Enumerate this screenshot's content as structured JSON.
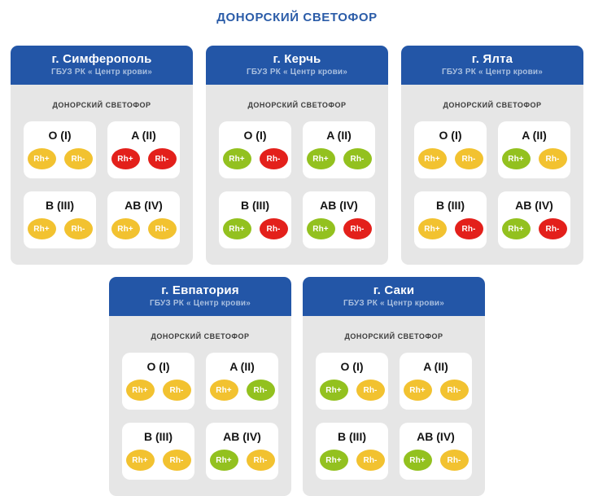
{
  "page": {
    "title": "ДОНОРСКИЙ СВЕТОФОР"
  },
  "labels": {
    "board_label": "ДОНОРСКИЙ СВЕТОФОР",
    "rh_plus": "Rh+",
    "rh_minus": "Rh-"
  },
  "colors": {
    "green": "#93c11f",
    "yellow": "#f2c230",
    "red": "#e3201b",
    "header_blue": "#2356a7",
    "title_blue": "#2b5ca8",
    "body_gray": "#e6e6e6"
  },
  "legend_meaning": {
    "green": "blood needed",
    "yellow": "moderate stock",
    "red": "stock full"
  },
  "centers": [
    {
      "city": "г. Симферополь",
      "subtitle": "ГБУЗ РК « Центр крови»",
      "groups": [
        {
          "type": "O (I)",
          "rh_plus": "yellow",
          "rh_minus": "yellow"
        },
        {
          "type": "A (II)",
          "rh_plus": "red",
          "rh_minus": "red"
        },
        {
          "type": "B (III)",
          "rh_plus": "yellow",
          "rh_minus": "yellow"
        },
        {
          "type": "AB (IV)",
          "rh_plus": "yellow",
          "rh_minus": "yellow"
        }
      ]
    },
    {
      "city": "г. Керчь",
      "subtitle": "ГБУЗ РК « Центр крови»",
      "groups": [
        {
          "type": "O (I)",
          "rh_plus": "green",
          "rh_minus": "red"
        },
        {
          "type": "A (II)",
          "rh_plus": "green",
          "rh_minus": "green"
        },
        {
          "type": "B (III)",
          "rh_plus": "green",
          "rh_minus": "red"
        },
        {
          "type": "AB (IV)",
          "rh_plus": "green",
          "rh_minus": "red"
        }
      ]
    },
    {
      "city": "г. Ялта",
      "subtitle": "ГБУЗ РК « Центр крови»",
      "groups": [
        {
          "type": "O (I)",
          "rh_plus": "yellow",
          "rh_minus": "yellow"
        },
        {
          "type": "A (II)",
          "rh_plus": "green",
          "rh_minus": "yellow"
        },
        {
          "type": "B (III)",
          "rh_plus": "yellow",
          "rh_minus": "red"
        },
        {
          "type": "AB (IV)",
          "rh_plus": "green",
          "rh_minus": "red"
        }
      ]
    },
    {
      "city": "г. Евпатория",
      "subtitle": "ГБУЗ РК « Центр крови»",
      "groups": [
        {
          "type": "O (I)",
          "rh_plus": "yellow",
          "rh_minus": "yellow"
        },
        {
          "type": "A (II)",
          "rh_plus": "yellow",
          "rh_minus": "green"
        },
        {
          "type": "B (III)",
          "rh_plus": "yellow",
          "rh_minus": "yellow"
        },
        {
          "type": "AB (IV)",
          "rh_plus": "green",
          "rh_minus": "yellow"
        }
      ]
    },
    {
      "city": "г. Саки",
      "subtitle": "ГБУЗ РК « Центр крови»",
      "groups": [
        {
          "type": "O (I)",
          "rh_plus": "green",
          "rh_minus": "yellow"
        },
        {
          "type": "A (II)",
          "rh_plus": "yellow",
          "rh_minus": "yellow"
        },
        {
          "type": "B (III)",
          "rh_plus": "green",
          "rh_minus": "yellow"
        },
        {
          "type": "AB (IV)",
          "rh_plus": "green",
          "rh_minus": "yellow"
        }
      ]
    }
  ]
}
